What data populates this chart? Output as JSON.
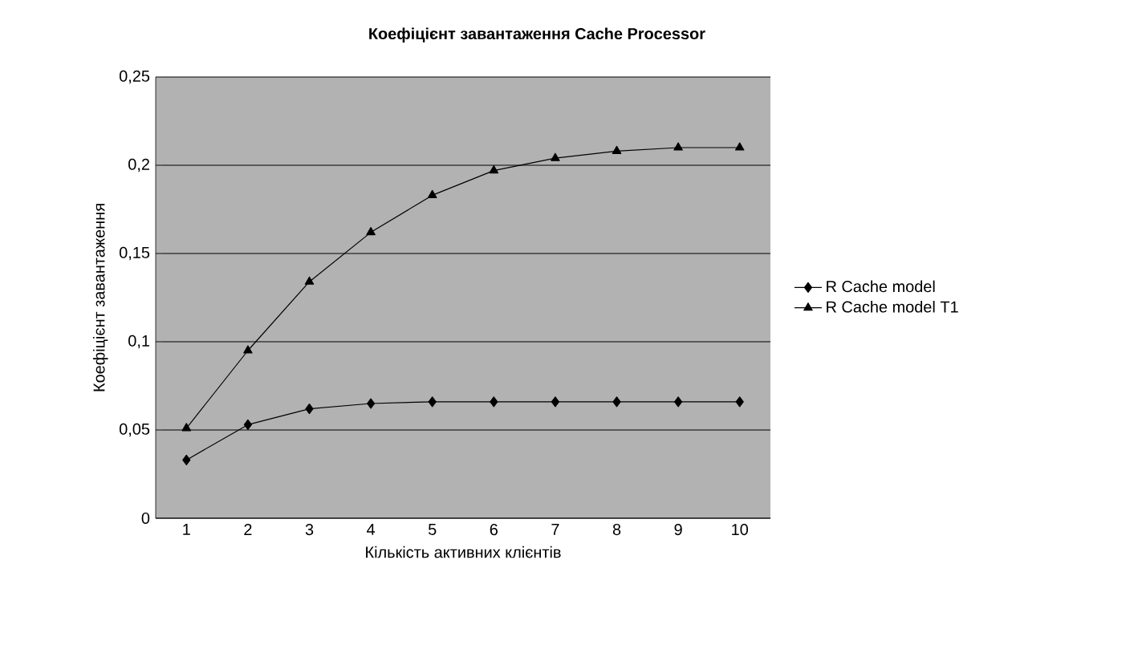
{
  "chart_data": {
    "type": "line",
    "title": "Коефіцієнт завантаження Cache Processor",
    "xlabel": "Кількість активних клієнтів",
    "ylabel": "Коефіцієнт завантаження",
    "categories": [
      "1",
      "2",
      "3",
      "4",
      "5",
      "6",
      "7",
      "8",
      "9",
      "10"
    ],
    "series": [
      {
        "name": "R Cache model",
        "color": "#000000",
        "marker": "diamond",
        "values": [
          0.033,
          0.053,
          0.062,
          0.065,
          0.066,
          0.066,
          0.066,
          0.066,
          0.066,
          0.066
        ]
      },
      {
        "name": "R Cache model T1",
        "color": "#000000",
        "marker": "triangle",
        "values": [
          0.051,
          0.095,
          0.134,
          0.162,
          0.183,
          0.197,
          0.204,
          0.208,
          0.21,
          0.21
        ]
      }
    ],
    "ylim": [
      0,
      0.25
    ],
    "yticks": [
      {
        "value": 0,
        "label": "0"
      },
      {
        "value": 0.05,
        "label": "0,05"
      },
      {
        "value": 0.1,
        "label": "0,1"
      },
      {
        "value": 0.15,
        "label": "0,15"
      },
      {
        "value": 0.2,
        "label": "0,2"
      },
      {
        "value": 0.25,
        "label": "0,25"
      }
    ],
    "grid": "y",
    "legend": "right",
    "line_style": "solid"
  }
}
